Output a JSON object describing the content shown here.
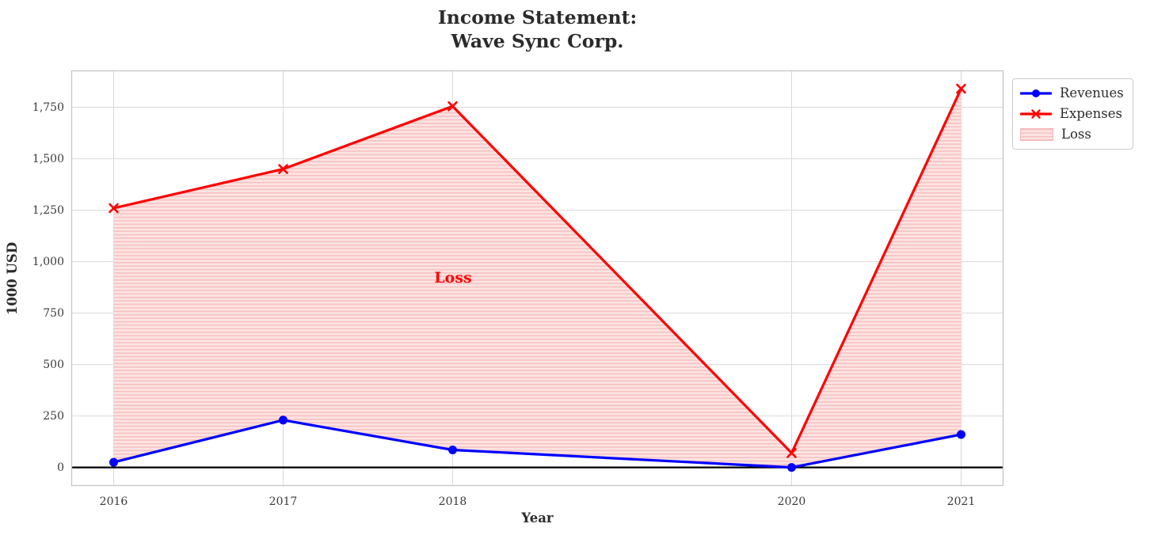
{
  "figure": {
    "background": "#ffffff",
    "title": "Income Statement:\nWave Sync Corp.",
    "annotation": "Loss"
  },
  "chart_data": {
    "type": "line",
    "title": "Income Statement:\nWave Sync Corp.",
    "xlabel": "Year",
    "ylabel": "1000 USD",
    "x": [
      2016,
      2017,
      2018,
      2020,
      2021
    ],
    "x_tick_labels": [
      "2016",
      "2017",
      "2018",
      "2020",
      "2021"
    ],
    "series": [
      {
        "name": "Revenues",
        "color": "#0000ff",
        "marker": "circle",
        "values": [
          25,
          230,
          85,
          0,
          160
        ]
      },
      {
        "name": "Expenses",
        "color": "#ff0000",
        "marker": "x",
        "values": [
          1260,
          1450,
          1755,
          70,
          1840
        ]
      }
    ],
    "fill_between": {
      "label": "Loss",
      "between": [
        "Expenses",
        "Revenues"
      ],
      "fill_color": "#fce4e3",
      "hatch_color": "#f6c1c0",
      "hatch": "horizontal-lines"
    },
    "annotation": {
      "text": "Loss",
      "color": "#ff0000",
      "x": 2018,
      "y": 920
    },
    "y_ticks": [
      0,
      250,
      500,
      750,
      1000,
      1250,
      1500,
      1750
    ],
    "y_tick_labels": [
      "0",
      "250",
      "500",
      "750",
      "1,000",
      "1,250",
      "1,500",
      "1,750"
    ],
    "ylim": [
      -90,
      1929
    ],
    "xlim": [
      2015.75,
      2021.25
    ],
    "grid": true,
    "grid_color": "#d9d9d9",
    "zero_line": true,
    "zero_line_color": "#000000",
    "legend_position": "outside-top-right",
    "legend": {
      "items": [
        {
          "label": "Revenues",
          "swatch": "line-circle",
          "color": "#0000ff"
        },
        {
          "label": "Expenses",
          "swatch": "line-x",
          "color": "#ff0000"
        },
        {
          "label": "Loss",
          "swatch": "hatch",
          "color": "#f6c1c0"
        }
      ]
    }
  }
}
